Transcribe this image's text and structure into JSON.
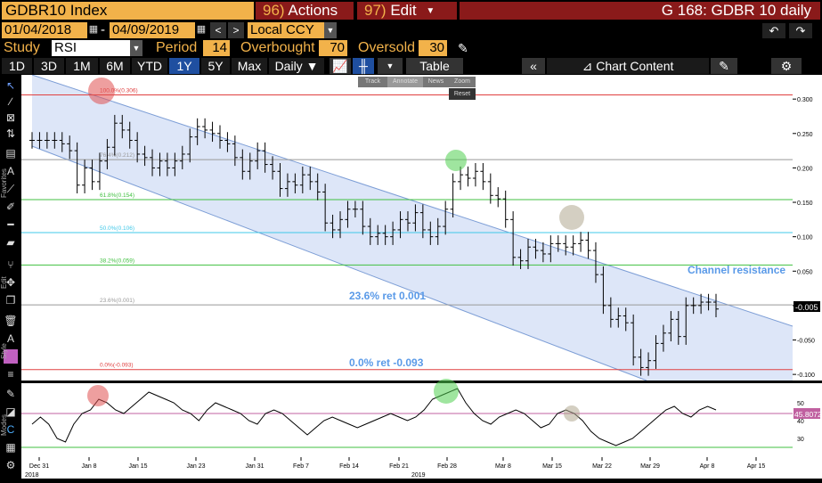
{
  "header": {
    "ticker": "GDBR10 Index",
    "actions_num": "96)",
    "actions_label": "Actions",
    "edit_num": "97)",
    "edit_label": "Edit",
    "title": "G 168: GDBR 10 daily"
  },
  "dates": {
    "start": "01/04/2018",
    "sep": "-",
    "end": "04/09/2019",
    "currency": "Local CCY"
  },
  "study": {
    "study_label": "Study",
    "study_value": "RSI",
    "period_label": "Period",
    "period_value": "14",
    "overbought_label": "Overbought",
    "overbought_value": "70",
    "oversold_label": "Oversold",
    "oversold_value": "30"
  },
  "toolbar": {
    "ranges": [
      "1D",
      "3D",
      "1M",
      "6M",
      "YTD",
      "1Y",
      "5Y",
      "Max"
    ],
    "selected_range": "1Y",
    "frequency": "Daily ▼",
    "table_label": "Table",
    "chart_content_label": "Chart Content"
  },
  "float_toolbar": {
    "items": [
      "Track",
      "Annotate",
      "News",
      "Zoom"
    ],
    "reset": "Reset"
  },
  "left_tool_labels": {
    "favorites": "Favorites",
    "edit": "Edit",
    "style": "Style",
    "modes": "Modes"
  },
  "icons": [
    "pointer-icon",
    "pencil-icon",
    "annotation-icon",
    "ruler-icon",
    "gear-icon",
    "undo-icon",
    "redo-icon",
    "double-chevron-left-icon",
    "chart-icon",
    "edit-icon",
    "calendar-icon"
  ],
  "colors": {
    "background": "#000000",
    "ticker_bg": "#f2b24a",
    "menu_bg": "#8a1a1a",
    "selected_range_bg": "#1f4fa0",
    "channel_fill": "#d9e3f7",
    "channel_line": "#7d9ed6",
    "fib_red": "#e04040",
    "fib_green": "#40c040",
    "fib_cyan": "#40c8e8",
    "fib_gray": "#999999",
    "rsi_overbought": "#c060a0",
    "rsi_oversold": "#40c040"
  },
  "chart_data": [
    {
      "type": "ohlc",
      "y_ticks": [
        "0.300",
        "0.250",
        "0.200",
        "0.150",
        "0.100",
        "0.050",
        "0.000",
        "-0.050",
        "-0.100"
      ],
      "ylim": [
        -0.105,
        0.33
      ],
      "x_ticks": [
        "Dec 31",
        "Jan 8",
        "Jan 15",
        "Jan 23",
        "Jan 31",
        "Feb 7",
        "Feb 14",
        "Feb 21",
        "Feb 28",
        "Mar 8",
        "Mar 15",
        "Mar 22",
        "Mar 29",
        "Apr 8",
        "Apr 15"
      ],
      "x_subtitles": [
        "2018",
        "2019"
      ],
      "last_value_label": "-0.005",
      "fib_levels": [
        {
          "label": "100.0%(0.306)",
          "value": 0.306,
          "color": "red"
        },
        {
          "label": "76.4%(0.212)",
          "value": 0.212,
          "color": "gray"
        },
        {
          "label": "61.8%(0.154)",
          "value": 0.154,
          "color": "green"
        },
        {
          "label": "50.0%(0.106)",
          "value": 0.106,
          "color": "cyan"
        },
        {
          "label": "38.2%(0.059)",
          "value": 0.059,
          "color": "green"
        },
        {
          "label": "23.6%(0.001)",
          "value": 0.001,
          "color": "gray"
        },
        {
          "label": "0.0%(-0.093)",
          "value": -0.093,
          "color": "red"
        }
      ],
      "annotations": [
        "23.6% ret 0.001",
        "0.0% ret -0.093",
        "Channel resistance"
      ],
      "closes": [
        0.24,
        0.24,
        0.24,
        0.24,
        0.235,
        0.225,
        0.175,
        0.2,
        0.18,
        0.21,
        0.23,
        0.265,
        0.255,
        0.24,
        0.22,
        0.215,
        0.2,
        0.21,
        0.2,
        0.21,
        0.22,
        0.245,
        0.26,
        0.255,
        0.25,
        0.24,
        0.235,
        0.215,
        0.195,
        0.21,
        0.225,
        0.205,
        0.195,
        0.17,
        0.18,
        0.175,
        0.19,
        0.18,
        0.165,
        0.12,
        0.11,
        0.125,
        0.14,
        0.14,
        0.115,
        0.1,
        0.105,
        0.1,
        0.11,
        0.125,
        0.12,
        0.135,
        0.11,
        0.1,
        0.115,
        0.14,
        0.18,
        0.19,
        0.185,
        0.195,
        0.18,
        0.16,
        0.155,
        0.125,
        0.07,
        0.065,
        0.085,
        0.08,
        0.075,
        0.09,
        0.09,
        0.085,
        0.09,
        0.095,
        0.08,
        0.045,
        0.0,
        -0.02,
        -0.015,
        -0.025,
        -0.075,
        -0.09,
        -0.08,
        -0.055,
        -0.04,
        -0.02,
        -0.045,
        0.0,
        0.0,
        0.005,
        0.005,
        -0.005
      ]
    },
    {
      "type": "line",
      "name": "RSI",
      "y_ticks": [
        "50",
        "40",
        "30"
      ],
      "ylim": [
        20,
        60
      ],
      "overbought": 70,
      "oversold": 30,
      "last_value_label": "45.8072",
      "values": [
        38,
        42,
        38,
        30,
        28,
        38,
        44,
        46,
        52,
        50,
        46,
        44,
        48,
        52,
        56,
        54,
        52,
        50,
        46,
        44,
        40,
        46,
        50,
        48,
        46,
        44,
        40,
        38,
        44,
        46,
        44,
        40,
        36,
        32,
        36,
        40,
        42,
        40,
        38,
        36,
        38,
        40,
        42,
        44,
        42,
        40,
        42,
        46,
        52,
        54,
        56,
        58,
        50,
        44,
        40,
        38,
        42,
        44,
        46,
        44,
        40,
        36,
        38,
        44,
        46,
        44,
        40,
        34,
        30,
        28,
        26,
        28,
        30,
        34,
        38,
        42,
        46,
        48,
        44,
        42,
        46,
        48,
        46
      ]
    }
  ]
}
